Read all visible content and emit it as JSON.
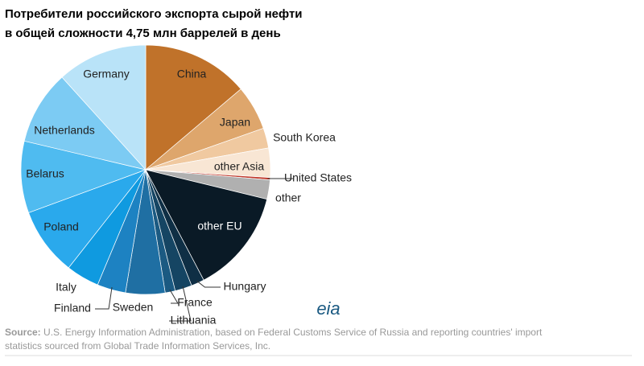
{
  "chart_data": {
    "type": "pie",
    "title": "Потребители  российского   экспорта  сырой   нефти",
    "subtitle": "в общей сложности 4,75 млн баррелей в день",
    "categories": [
      "China",
      "Japan",
      "South Korea",
      "other Asia",
      "United States",
      "other",
      "other EU",
      "Hungary",
      "Lithuania",
      "France",
      "Sweden",
      "Finland",
      "Italy",
      "Poland",
      "Belarus",
      "Netherlands",
      "Germany"
    ],
    "values": [
      13.8,
      5.8,
      2.6,
      3.8,
      0.3,
      2.5,
      13.5,
      1.7,
      2.2,
      1.3,
      5.1,
      3.7,
      4.3,
      8.8,
      9.3,
      9.6,
      11.7
    ],
    "colors": [
      "#c0722a",
      "#dea66c",
      "#f0c9a0",
      "#f8e6d4",
      "#c0392b",
      "#b0b0b0",
      "#0a1a26",
      "#0f2f45",
      "#154563",
      "#1b5a82",
      "#1f6fa3",
      "#1d82c2",
      "#0f9ae0",
      "#2aa9ec",
      "#4fbbf0",
      "#7ccbf3",
      "#b9e3f8"
    ],
    "source_label": "Source:",
    "source_text": "U.S. Energy Information Administration, based on Federal Customs Service of Russia and reporting countries' import",
    "source_text_2": "statistics sourced from Global Trade Information Services, Inc.",
    "logo": "eia"
  }
}
